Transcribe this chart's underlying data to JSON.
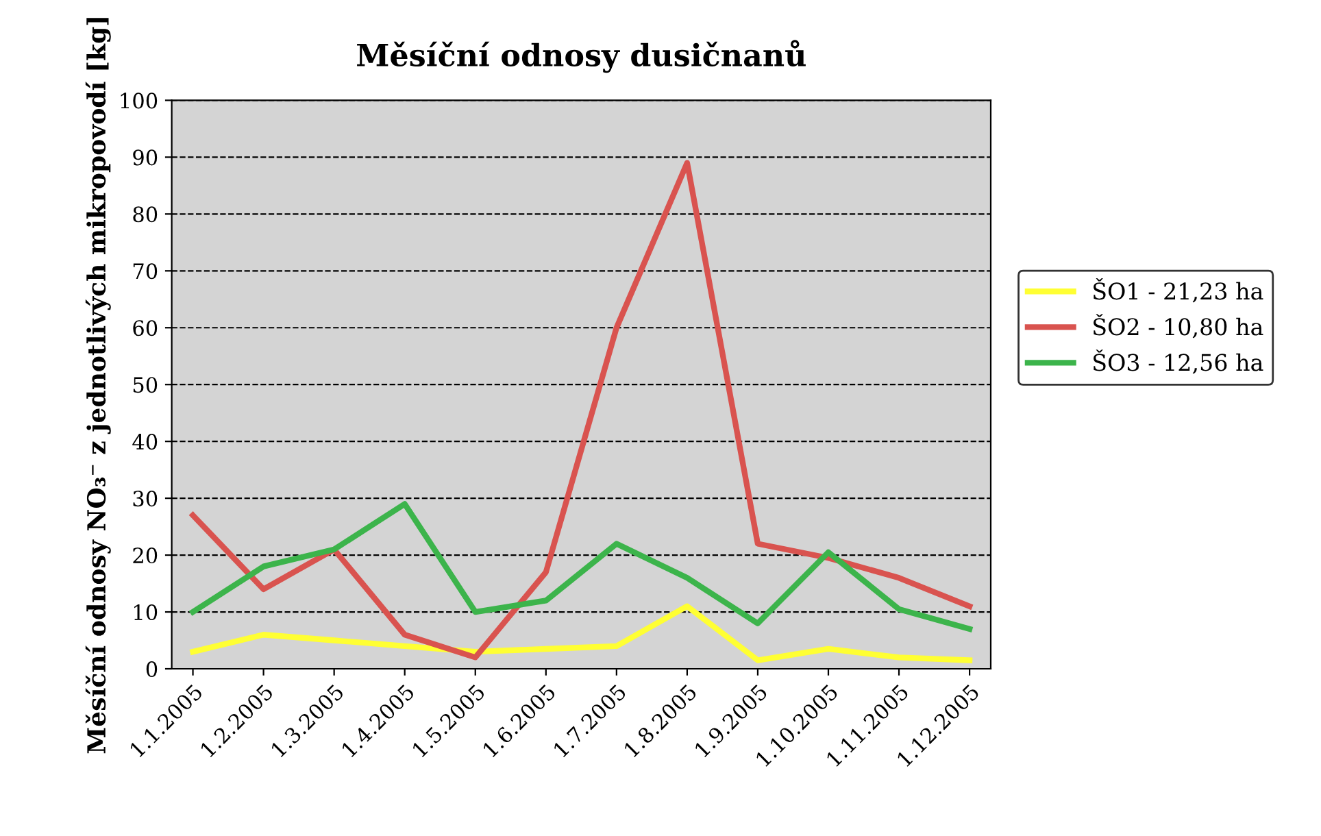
{
  "chart_data": {
    "type": "line",
    "title": "Měsíční odnosy dusičnanů",
    "ylabel": "Měsíční odnosy NO₃⁻ z jednotlivých mikropovodí [kg]",
    "categories": [
      "1.1.2005",
      "1.2.2005",
      "1.3.2005",
      "1.4.2005",
      "1.5.2005",
      "1.6.2005",
      "1.7.2005",
      "1.8.2005",
      "1.9.2005",
      "1.10.2005",
      "1.11.2005",
      "1.12.2005"
    ],
    "series": [
      {
        "name": "ŠO1 - 21,23 ha",
        "color": "#ffff33",
        "values": [
          3,
          6,
          5,
          4,
          3,
          3.5,
          4,
          11,
          1.5,
          3.5,
          2,
          1.5
        ]
      },
      {
        "name": "ŠO2 - 10,80 ha",
        "color": "#d9534f",
        "values": [
          27,
          14,
          21,
          6,
          2,
          17,
          60,
          89,
          22,
          19.5,
          16,
          11
        ]
      },
      {
        "name": "ŠO3 - 12,56 ha",
        "color": "#3cb44b",
        "values": [
          10,
          18,
          21,
          29,
          10,
          12,
          22,
          16,
          8,
          20.5,
          10.5,
          7
        ]
      }
    ],
    "ylim": [
      0,
      100
    ],
    "yticks": [
      0,
      10,
      20,
      30,
      40,
      50,
      60,
      70,
      80,
      90,
      100
    ],
    "grid": "y",
    "legend": "right",
    "marker": "none",
    "line_style": "solid"
  }
}
